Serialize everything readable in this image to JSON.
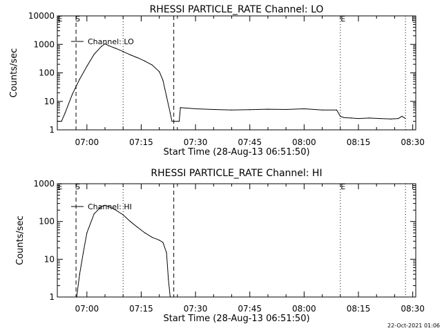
{
  "footer": {
    "date_stamp": "22-Oct-2021 01:06"
  },
  "colors": {
    "background": "#ffffff",
    "foreground": "#000000"
  },
  "chart_data": [
    {
      "type": "line",
      "title": "RHESSI PARTICLE_RATE Channel: LO",
      "xlabel": "Start Time (28-Aug-13 06:51:50)",
      "ylabel": "Counts/sec",
      "y_scale": "log",
      "xlim": [
        "06:51:50",
        "08:30:50"
      ],
      "ylim": [
        1,
        10000
      ],
      "x_ticks": [
        "07:00",
        "07:15",
        "07:30",
        "07:45",
        "08:00",
        "08:15",
        "08:30"
      ],
      "y_ticks": [
        "1",
        "10",
        "100",
        "1000",
        "10000"
      ],
      "legend": {
        "position": "top-left",
        "entries": [
          "Channel: LO"
        ]
      },
      "markers": [
        {
          "label": "S",
          "time": "06:52:30",
          "style": "none"
        },
        {
          "label": "",
          "time": "06:57:00",
          "style": "dashed"
        },
        {
          "label": "",
          "time": "07:10:00",
          "style": "dotted"
        },
        {
          "label": "",
          "time": "07:24:00",
          "style": "dashed"
        },
        {
          "label": "E",
          "time": "08:10:00",
          "style": "dotted"
        },
        {
          "label": "",
          "time": "08:28:00",
          "style": "dotted"
        }
      ],
      "series": [
        {
          "x": [
            "06:51:50",
            "06:53:00",
            "06:54:00",
            "06:56:00",
            "06:58:00",
            "07:00:00",
            "07:02:00",
            "07:04:00",
            "07:05:00",
            "07:06:00",
            "07:08:00",
            "07:10:00",
            "07:12:00",
            "07:14:00",
            "07:16:00",
            "07:18:00",
            "07:20:00",
            "07:21:00",
            "07:22:00",
            "07:23:00",
            "07:23:30",
            "07:25:30",
            "07:25:50",
            "07:26:00",
            "07:30:00",
            "07:35:00",
            "07:40:00",
            "07:45:00",
            "07:50:00",
            "07:55:00",
            "08:00:00",
            "08:05:00",
            "08:09:00",
            "08:10:00",
            "08:11:00",
            "08:13:00",
            "08:15:00",
            "08:18:00",
            "08:21:00",
            "08:24:00",
            "08:26:00",
            "08:27:00",
            "08:28:00"
          ],
          "y": [
            2,
            2,
            4,
            18,
            60,
            170,
            450,
            850,
            1050,
            900,
            720,
            560,
            430,
            340,
            260,
            190,
            110,
            55,
            15,
            4,
            2,
            2,
            6,
            6,
            5.5,
            5.2,
            5,
            5.1,
            5.3,
            5.2,
            5.5,
            5,
            5,
            3,
            2.7,
            2.6,
            2.5,
            2.6,
            2.5,
            2.4,
            2.5,
            3,
            2.5
          ]
        }
      ]
    },
    {
      "type": "line",
      "title": "RHESSI PARTICLE_RATE Channel: HI",
      "xlabel": "Start Time (28-Aug-13 06:51:50)",
      "ylabel": "Counts/sec",
      "y_scale": "log",
      "xlim": [
        "06:51:50",
        "08:30:50"
      ],
      "ylim": [
        1,
        1000
      ],
      "x_ticks": [
        "07:00",
        "07:15",
        "07:30",
        "07:45",
        "08:00",
        "08:15",
        "08:30"
      ],
      "y_ticks": [
        "1",
        "10",
        "100",
        "1000"
      ],
      "legend": {
        "position": "top-left",
        "entries": [
          "Channel: HI"
        ]
      },
      "markers": [
        {
          "label": "S",
          "time": "06:52:30",
          "style": "none"
        },
        {
          "label": "",
          "time": "06:57:00",
          "style": "dashed"
        },
        {
          "label": "",
          "time": "07:10:00",
          "style": "dotted"
        },
        {
          "label": "",
          "time": "07:24:00",
          "style": "dashed"
        },
        {
          "label": "E",
          "time": "08:10:00",
          "style": "dotted"
        },
        {
          "label": "",
          "time": "08:28:00",
          "style": "dotted"
        }
      ],
      "series": [
        {
          "x": [
            "06:57:10",
            "06:58:00",
            "06:59:00",
            "07:00:00",
            "07:02:00",
            "07:04:00",
            "07:05:00",
            "07:06:00",
            "07:08:00",
            "07:10:00",
            "07:12:00",
            "07:14:00",
            "07:16:00",
            "07:18:00",
            "07:20:00",
            "07:21:00",
            "07:22:00",
            "07:22:30",
            "07:23:00"
          ],
          "y": [
            1,
            4,
            15,
            50,
            160,
            250,
            270,
            250,
            200,
            150,
            100,
            70,
            50,
            38,
            32,
            28,
            15,
            3,
            1
          ]
        }
      ]
    }
  ]
}
